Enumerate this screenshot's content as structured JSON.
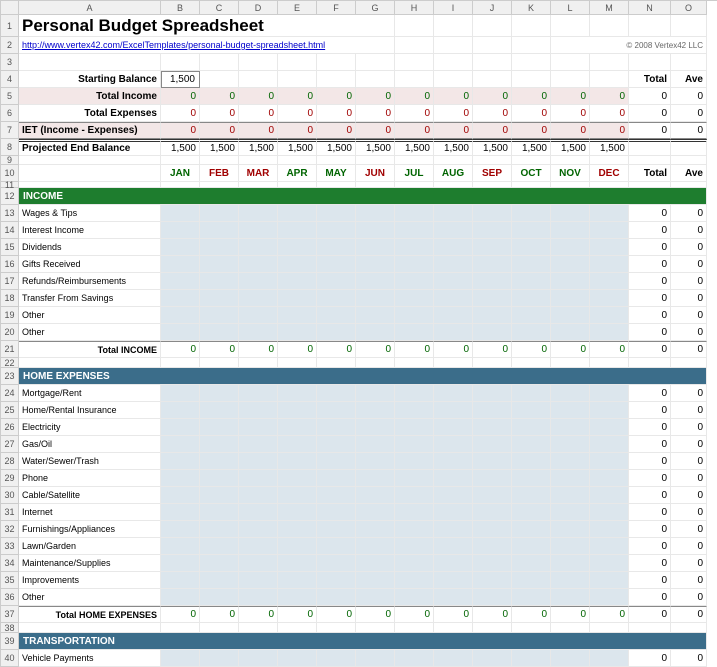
{
  "columns": [
    "",
    "A",
    "B",
    "C",
    "D",
    "E",
    "F",
    "G",
    "H",
    "I",
    "J",
    "K",
    "L",
    "M",
    "N",
    "O"
  ],
  "title": "Personal Budget Spreadsheet",
  "url": "http://www.vertex42.com/ExcelTemplates/personal-budget-spreadsheet.html",
  "copyright": "© 2008 Vertex42 LLC",
  "labels": {
    "starting_balance": "Starting Balance",
    "total_income": "Total Income",
    "total_expenses": "Total Expenses",
    "net": "IET (Income - Expenses)",
    "projected_end": "Projected End Balance",
    "total": "Total",
    "ave": "Ave"
  },
  "starting_balance": "1,500",
  "months": [
    {
      "label": "JAN",
      "color": "green"
    },
    {
      "label": "FEB",
      "color": "red"
    },
    {
      "label": "MAR",
      "color": "red"
    },
    {
      "label": "APR",
      "color": "green"
    },
    {
      "label": "MAY",
      "color": "green"
    },
    {
      "label": "JUN",
      "color": "red"
    },
    {
      "label": "JUL",
      "color": "green"
    },
    {
      "label": "AUG",
      "color": "green"
    },
    {
      "label": "SEP",
      "color": "red"
    },
    {
      "label": "OCT",
      "color": "green"
    },
    {
      "label": "NOV",
      "color": "green"
    },
    {
      "label": "DEC",
      "color": "red"
    }
  ],
  "summary": {
    "income": [
      "0",
      "0",
      "0",
      "0",
      "0",
      "0",
      "0",
      "0",
      "0",
      "0",
      "0",
      "0"
    ],
    "income_total": "0",
    "income_ave": "0",
    "expenses": [
      "0",
      "0",
      "0",
      "0",
      "0",
      "0",
      "0",
      "0",
      "0",
      "0",
      "0",
      "0"
    ],
    "expenses_total": "0",
    "expenses_ave": "0",
    "net": [
      "0",
      "0",
      "0",
      "0",
      "0",
      "0",
      "0",
      "0",
      "0",
      "0",
      "0",
      "0"
    ],
    "net_total": "0",
    "net_ave": "0",
    "projected": [
      "1,500",
      "1,500",
      "1,500",
      "1,500",
      "1,500",
      "1,500",
      "1,500",
      "1,500",
      "1,500",
      "1,500",
      "1,500",
      "1,500"
    ],
    "total_label": "Total",
    "ave_label": "Ave"
  },
  "sections": [
    {
      "row_start": 12,
      "header": "INCOME",
      "header_bg": "darkgreen-bg",
      "items": [
        "Wages & Tips",
        "Interest Income",
        "Dividends",
        "Gifts Received",
        "Refunds/Reimbursements",
        "Transfer From Savings",
        "Other",
        "Other"
      ],
      "total_label": "Total INCOME",
      "totals": [
        "0",
        "0",
        "0",
        "0",
        "0",
        "0",
        "0",
        "0",
        "0",
        "0",
        "0",
        "0"
      ],
      "total_sum": "0",
      "total_ave": "0",
      "item_total": "0",
      "item_ave": "0"
    },
    {
      "row_start": 23,
      "header": "HOME EXPENSES",
      "header_bg": "steelblue-bg",
      "items": [
        "Mortgage/Rent",
        "Home/Rental Insurance",
        "Electricity",
        "Gas/Oil",
        "Water/Sewer/Trash",
        "Phone",
        "Cable/Satellite",
        "Internet",
        "Furnishings/Appliances",
        "Lawn/Garden",
        "Maintenance/Supplies",
        "Improvements",
        "Other"
      ],
      "total_label": "Total HOME EXPENSES",
      "totals": [
        "0",
        "0",
        "0",
        "0",
        "0",
        "0",
        "0",
        "0",
        "0",
        "0",
        "0",
        "0"
      ],
      "total_sum": "0",
      "total_ave": "0",
      "item_total": "0",
      "item_ave": "0"
    },
    {
      "row_start": 39,
      "header": "TRANSPORTATION",
      "header_bg": "steelblue-bg",
      "items": [
        "Vehicle Payments"
      ],
      "total_label": "",
      "totals": [],
      "total_sum": "",
      "total_ave": "",
      "item_total": "0",
      "item_ave": "0",
      "truncated": true
    }
  ]
}
